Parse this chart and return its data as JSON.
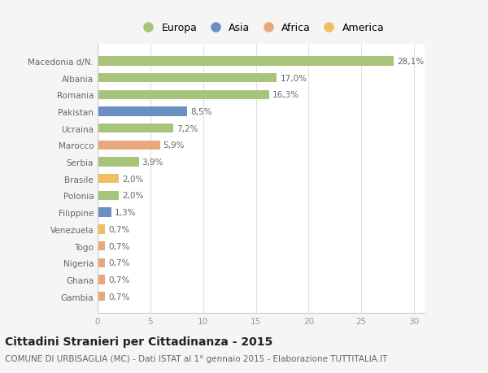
{
  "categories": [
    "Macedonia d/N.",
    "Albania",
    "Romania",
    "Pakistan",
    "Ucraina",
    "Marocco",
    "Serbia",
    "Brasile",
    "Polonia",
    "Filippine",
    "Venezuela",
    "Togo",
    "Nigeria",
    "Ghana",
    "Gambia"
  ],
  "values": [
    28.1,
    17.0,
    16.3,
    8.5,
    7.2,
    5.9,
    3.9,
    2.0,
    2.0,
    1.3,
    0.7,
    0.7,
    0.7,
    0.7,
    0.7
  ],
  "labels": [
    "28,1%",
    "17,0%",
    "16,3%",
    "8,5%",
    "7,2%",
    "5,9%",
    "3,9%",
    "2,0%",
    "2,0%",
    "1,3%",
    "0,7%",
    "0,7%",
    "0,7%",
    "0,7%",
    "0,7%"
  ],
  "colors": [
    "#a8c47a",
    "#a8c47a",
    "#a8c47a",
    "#6b8fc2",
    "#a8c47a",
    "#e8a87c",
    "#a8c47a",
    "#f0c060",
    "#a8c47a",
    "#6b8fc2",
    "#f0c060",
    "#e8a87c",
    "#e8a87c",
    "#e8a87c",
    "#e8a87c"
  ],
  "legend_labels": [
    "Europa",
    "Asia",
    "Africa",
    "America"
  ],
  "legend_colors": [
    "#a8c47a",
    "#6b8fc2",
    "#e8a87c",
    "#f0c060"
  ],
  "xlim": [
    0,
    31
  ],
  "xticks": [
    0,
    5,
    10,
    15,
    20,
    25,
    30
  ],
  "title": "Cittadini Stranieri per Cittadinanza - 2015",
  "subtitle": "COMUNE DI URBISAGLIA (MC) - Dati ISTAT al 1° gennaio 2015 - Elaborazione TUTTITALIA.IT",
  "bg_color": "#f5f5f5",
  "plot_bg_color": "#ffffff",
  "bar_height": 0.55,
  "title_fontsize": 10,
  "subtitle_fontsize": 7.5,
  "label_fontsize": 7.5,
  "tick_fontsize": 7.5,
  "legend_fontsize": 9
}
